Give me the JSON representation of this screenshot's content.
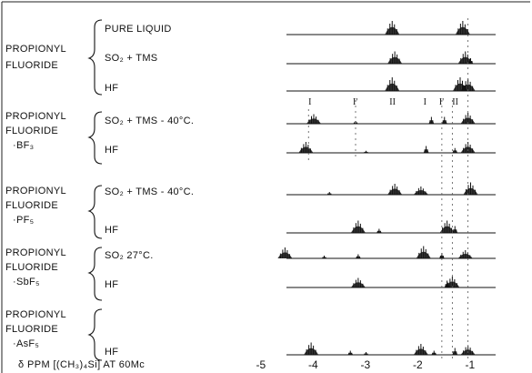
{
  "compounds": [
    {
      "lines": [
        "PROPIONYL",
        "FLUORIDE"
      ],
      "conditions": [
        "PURE LIQUID",
        "SO₂ + TMS",
        "HF"
      ]
    },
    {
      "lines": [
        "PROPIONYL",
        "FLUORIDE",
        "·BF₃"
      ],
      "conditions": [
        "SO₂ + TMS - 40°C.",
        "HF"
      ]
    },
    {
      "lines": [
        "PROPIONYL",
        "FLUORIDE",
        "·PF₅"
      ],
      "conditions": [
        "SO₂ + TMS - 40°C.",
        "HF"
      ]
    },
    {
      "lines": [
        "PROPIONYL",
        "FLUORIDE",
        "·SbF₅"
      ],
      "conditions": [
        "SO₂ 27°C.",
        "HF"
      ]
    },
    {
      "lines": [
        "PROPIONYL",
        "FLUORIDE",
        "·AsF₅"
      ],
      "conditions": [
        "HF"
      ]
    }
  ],
  "peak_labels": [
    "I",
    "I'",
    "II",
    "I",
    "I'",
    "II"
  ],
  "axis": {
    "title": "δ PPM [(CH₃)₄Si]  AT 60Mc",
    "ticks": [
      "-5",
      "-4",
      "-3",
      "-2",
      "-1"
    ]
  },
  "chart_data": {
    "type": "line",
    "title": "",
    "xlabel": "δ PPM [(CH₃)₄Si]  AT 60Mc",
    "ylabel": "",
    "xlim": [
      -5,
      -0.9
    ],
    "grid": false,
    "spectra": [
      {
        "compound": "PROPIONYL FLUORIDE",
        "condition": "PURE LIQUID",
        "peaks": [
          [
            -2.5,
            1.0
          ],
          [
            -1.15,
            1.0
          ]
        ]
      },
      {
        "compound": "PROPIONYL FLUORIDE",
        "condition": "SO₂ + TMS",
        "peaks": [
          [
            -2.45,
            0.9
          ],
          [
            -1.1,
            0.9
          ],
          [
            -1.0,
            0.4
          ]
        ]
      },
      {
        "compound": "PROPIONYL FLUORIDE",
        "condition": "HF",
        "peaks": [
          [
            -2.5,
            1.0
          ],
          [
            -1.2,
            1.0
          ],
          [
            -1.05,
            0.9
          ]
        ]
      },
      {
        "compound": "PROPIONYL FLUORIDE·BF₃",
        "condition": "SO₂ + TMS - 40°C.",
        "peaks": [
          [
            -4.0,
            0.7
          ],
          [
            -3.2,
            0.2
          ],
          [
            -1.75,
            0.5
          ],
          [
            -1.5,
            0.5
          ],
          [
            -1.05,
            0.8
          ]
        ]
      },
      {
        "compound": "PROPIONYL FLUORIDE·BF₃",
        "condition": "HF",
        "peaks": [
          [
            -4.15,
            0.8
          ],
          [
            -3.0,
            0.15
          ],
          [
            -1.85,
            0.5
          ],
          [
            -1.3,
            0.35
          ],
          [
            -1.05,
            0.8
          ]
        ]
      },
      {
        "compound": "PROPIONYL FLUORIDE·PF₅",
        "condition": "SO₂ + TMS - 40°C.",
        "peaks": [
          [
            -3.7,
            0.2
          ],
          [
            -2.45,
            0.8
          ],
          [
            -1.95,
            0.6
          ],
          [
            -1.0,
            0.9
          ]
        ]
      },
      {
        "compound": "PROPIONYL FLUORIDE·PF₅",
        "condition": "HF",
        "peaks": [
          [
            -3.15,
            0.9
          ],
          [
            -2.75,
            0.3
          ],
          [
            -1.45,
            0.9
          ],
          [
            -1.3,
            0.5
          ]
        ]
      },
      {
        "compound": "PROPIONYL FLUORIDE·SbF₅",
        "condition": "SO₂ 27°C.",
        "peaks": [
          [
            -4.55,
            0.8
          ],
          [
            -3.8,
            0.2
          ],
          [
            -3.15,
            0.3
          ],
          [
            -1.9,
            0.9
          ],
          [
            -1.55,
            0.4
          ],
          [
            -1.1,
            0.6
          ]
        ]
      },
      {
        "compound": "PROPIONYL FLUORIDE·SbF₅",
        "condition": "HF",
        "peaks": [
          [
            -3.15,
            0.7
          ],
          [
            -1.35,
            0.8
          ],
          [
            -1.45,
            0.5
          ]
        ]
      },
      {
        "compound": "PROPIONYL FLUORIDE·AsF₅",
        "condition": "HF",
        "peaks": [
          [
            -4.05,
            0.9
          ],
          [
            -3.3,
            0.3
          ],
          [
            -3.0,
            0.2
          ],
          [
            -1.95,
            0.8
          ],
          [
            -1.7,
            0.3
          ],
          [
            -1.3,
            0.5
          ],
          [
            -1.05,
            0.7
          ]
        ]
      }
    ]
  }
}
